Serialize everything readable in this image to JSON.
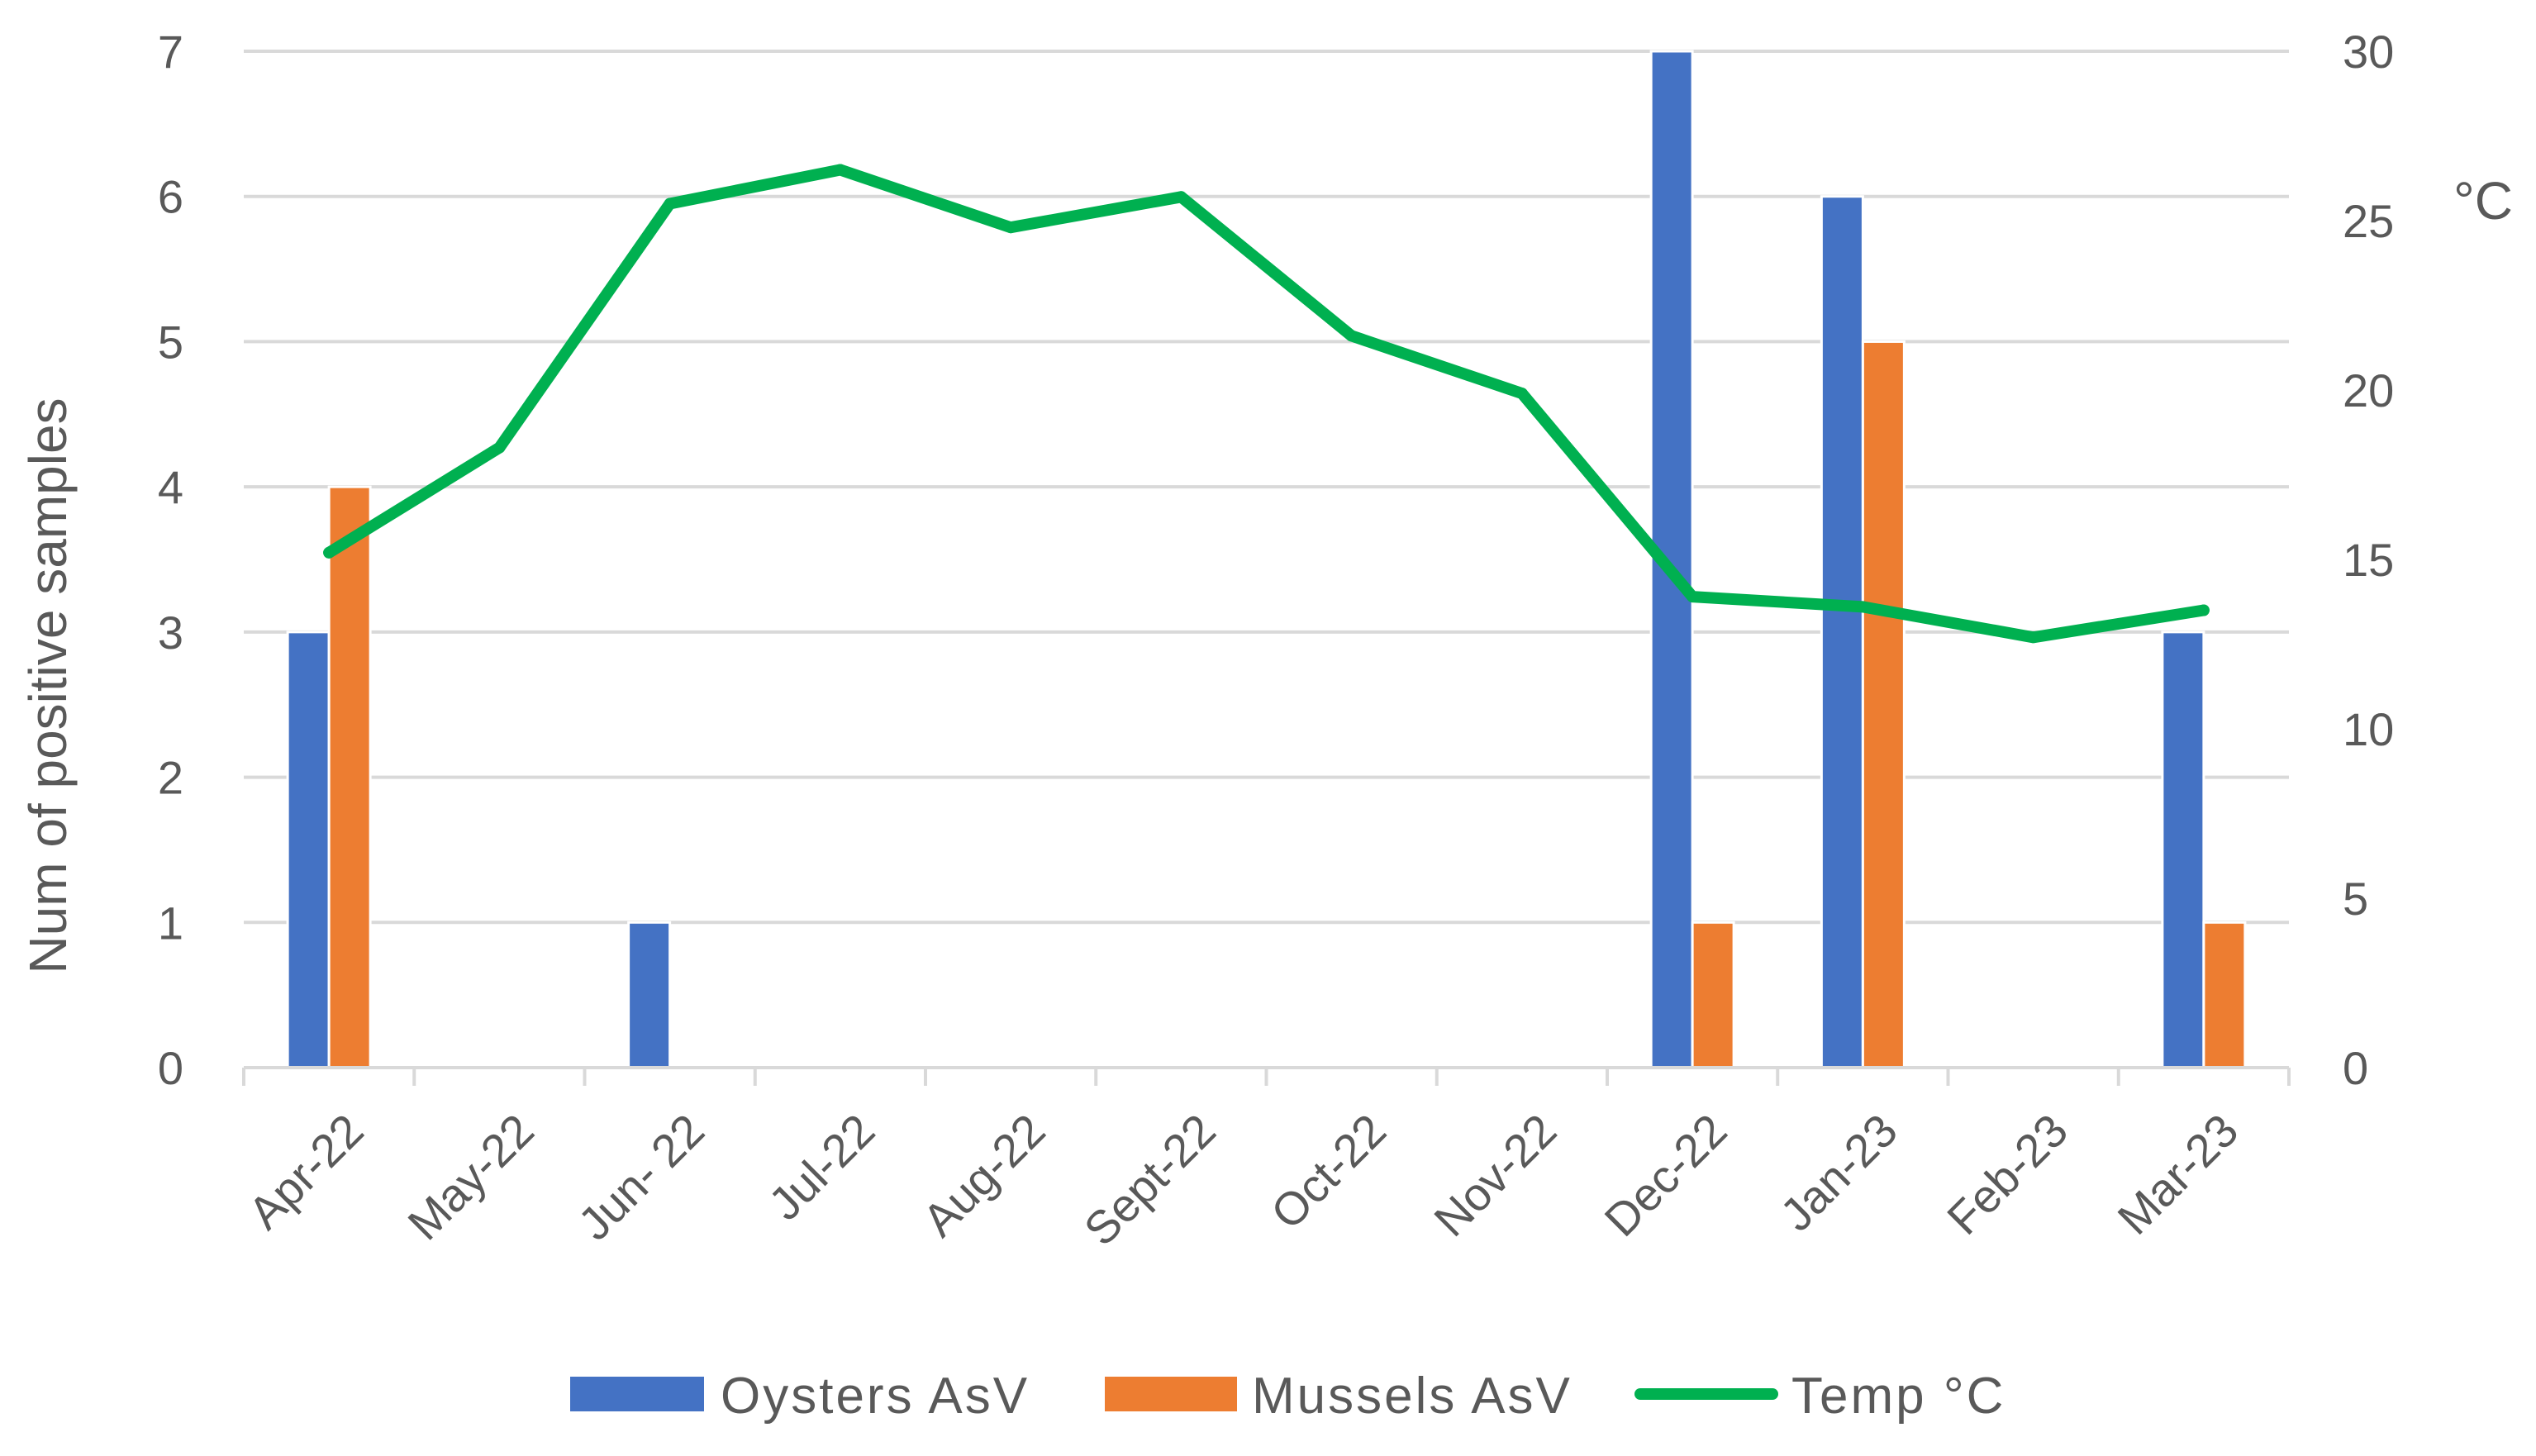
{
  "chart_data": {
    "type": "bar",
    "categories": [
      "Apr-22",
      "May-22",
      "Jun- 22",
      "Jul-22",
      "Aug-22",
      "Sept-22",
      "Oct-22",
      "Nov-22",
      "Dec-22",
      "Jan-23",
      "Feb-23",
      "Mar-23"
    ],
    "series": [
      {
        "name": "Oysters AsV",
        "kind": "bar",
        "axis": "left",
        "color": "#4472C4",
        "values": [
          3,
          0,
          1,
          0,
          0,
          0,
          0,
          0,
          7,
          6,
          0,
          3
        ]
      },
      {
        "name": "Mussels AsV",
        "kind": "bar",
        "axis": "left",
        "color": "#ED7D31",
        "values": [
          4,
          0,
          0,
          0,
          0,
          0,
          0,
          0,
          1,
          5,
          0,
          1
        ]
      },
      {
        "name": "Temp °C",
        "kind": "line",
        "axis": "right",
        "color": "#00B050",
        "values": [
          15.2,
          18.3,
          25.5,
          26.5,
          24.8,
          25.7,
          21.6,
          19.9,
          13.9,
          13.6,
          12.7,
          13.5
        ]
      }
    ],
    "ylabel": "Num of positive samples",
    "y2label": "°C",
    "ylim": [
      0,
      7
    ],
    "y2lim": [
      0,
      30
    ],
    "yticks": [
      "0",
      "1",
      "2",
      "3",
      "4",
      "5",
      "6",
      "7"
    ],
    "y2ticks": [
      "0",
      "5",
      "10",
      "15",
      "20",
      "25",
      "30"
    ],
    "grid": true,
    "legend": "bottom"
  }
}
